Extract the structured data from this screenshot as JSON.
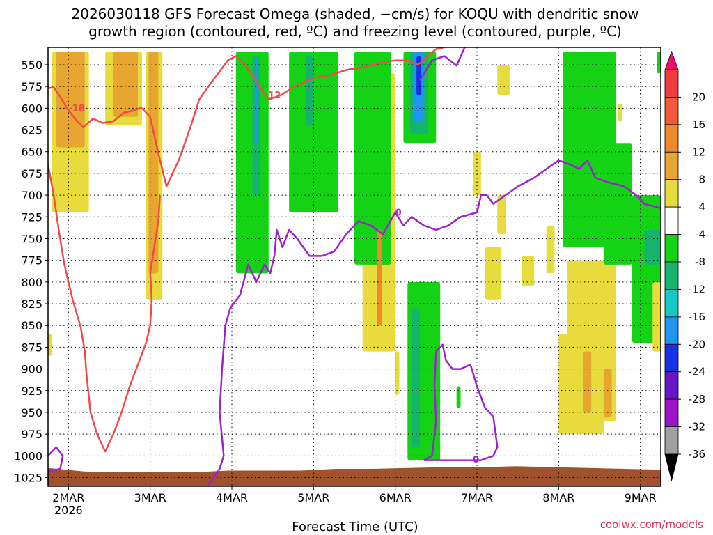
{
  "chart_data": {
    "type": "heatmap",
    "title_line1": "2026030118 GFS Forecast Omega (shaded, −cm/s) for KOQU with dendritic snow",
    "title_line2": "growth region (contoured, red, ºC) and freezing level (contoured, purple, ºC)",
    "xlabel": "Forecast Time (UTC)",
    "ylabel": "",
    "credit": "coolwx.com/models",
    "x_ticks": [
      {
        "label": "2MAR",
        "sublabel": "2026",
        "t": 0
      },
      {
        "label": "3MAR",
        "t": 1
      },
      {
        "label": "4MAR",
        "t": 2
      },
      {
        "label": "5MAR",
        "t": 3
      },
      {
        "label": "6MAR",
        "t": 4
      },
      {
        "label": "7MAR",
        "t": 5
      },
      {
        "label": "8MAR",
        "t": 6
      },
      {
        "label": "9MAR",
        "t": 7
      }
    ],
    "xlim": [
      -0.25,
      7.25
    ],
    "y_ticks": [
      550,
      575,
      600,
      625,
      650,
      675,
      700,
      725,
      750,
      775,
      800,
      825,
      850,
      875,
      900,
      925,
      950,
      975,
      1000,
      1025
    ],
    "ylim": [
      1035,
      530
    ],
    "grid": true,
    "colorbar": {
      "labels": [
        "20",
        "16",
        "12",
        "8",
        "4",
        "-4",
        "-8",
        "-12",
        "-16",
        "-20",
        "-24",
        "-28",
        "-32",
        "-36"
      ],
      "top_arrow": "#e8106e",
      "bottom_arrow": "#000000",
      "levels": [
        {
          "lo": 20,
          "hi": 24,
          "color": "#f03c3c"
        },
        {
          "lo": 16,
          "hi": 20,
          "color": "#f25a3a"
        },
        {
          "lo": 12,
          "hi": 16,
          "color": "#ee8a2a"
        },
        {
          "lo": 8,
          "hi": 12,
          "color": "#e6a630"
        },
        {
          "lo": 4,
          "hi": 8,
          "color": "#e8dc3c"
        },
        {
          "lo": -4,
          "hi": 4,
          "color": "#ffffff"
        },
        {
          "lo": -8,
          "hi": -4,
          "color": "#14d214"
        },
        {
          "lo": -12,
          "hi": -8,
          "color": "#14b46e"
        },
        {
          "lo": -16,
          "hi": -12,
          "color": "#14c8c8"
        },
        {
          "lo": -20,
          "hi": -16,
          "color": "#1e96f0"
        },
        {
          "lo": -24,
          "hi": -20,
          "color": "#1432e6"
        },
        {
          "lo": -28,
          "hi": -24,
          "color": "#6a14c8"
        },
        {
          "lo": -32,
          "hi": -28,
          "color": "#a014c8"
        },
        {
          "lo": -36,
          "hi": -32,
          "color": "#a0a0a0"
        }
      ]
    },
    "terrain": {
      "color": "#a0522d",
      "surface_hpa": [
        1014,
        1018,
        1019,
        1019,
        1019,
        1017,
        1017,
        1017,
        1015,
        1015,
        1014,
        1013,
        1013,
        1012,
        1013,
        1014,
        1015,
        1016
      ]
    },
    "shading_regions": [
      {
        "value": 6,
        "t0": -0.2,
        "t1": 0.25,
        "p_top": 535,
        "p_bot": 720
      },
      {
        "value": 10,
        "t0": -0.15,
        "t1": 0.2,
        "p_top": 535,
        "p_bot": 645
      },
      {
        "value": 6,
        "t0": 0.45,
        "t1": 0.9,
        "p_top": 535,
        "p_bot": 620
      },
      {
        "value": 10,
        "t0": 0.55,
        "t1": 0.85,
        "p_top": 535,
        "p_bot": 610
      },
      {
        "value": 6,
        "t0": 0.95,
        "t1": 1.15,
        "p_top": 535,
        "p_bot": 820
      },
      {
        "value": 10,
        "t0": 0.98,
        "t1": 1.1,
        "p_top": 535,
        "p_bot": 790
      },
      {
        "value": 6,
        "t0": -0.25,
        "t1": -0.2,
        "p_top": 860,
        "p_bot": 885
      },
      {
        "value": -6,
        "t0": 2.05,
        "t1": 2.45,
        "p_top": 535,
        "p_bot": 790
      },
      {
        "value": -10,
        "t0": 2.25,
        "t1": 2.35,
        "p_top": 540,
        "p_bot": 700
      },
      {
        "value": -18,
        "t0": 2.28,
        "t1": 2.32,
        "p_top": 545,
        "p_bot": 640
      },
      {
        "value": -6,
        "t0": 2.7,
        "t1": 3.3,
        "p_top": 535,
        "p_bot": 720
      },
      {
        "value": -10,
        "t0": 2.9,
        "t1": 3.0,
        "p_top": 540,
        "p_bot": 620
      },
      {
        "value": 6,
        "t0": 3.6,
        "t1": 4.0,
        "p_top": 560,
        "p_bot": 880
      },
      {
        "value": -6,
        "t0": 3.5,
        "t1": 3.95,
        "p_top": 535,
        "p_bot": 780
      },
      {
        "value": 14,
        "t0": 3.78,
        "t1": 3.84,
        "p_top": 740,
        "p_bot": 850
      },
      {
        "value": -6,
        "t0": 4.1,
        "t1": 4.5,
        "p_top": 535,
        "p_bot": 640
      },
      {
        "value": -10,
        "t0": 4.18,
        "t1": 4.4,
        "p_top": 535,
        "p_bot": 630
      },
      {
        "value": -18,
        "t0": 4.22,
        "t1": 4.34,
        "p_top": 535,
        "p_bot": 615
      },
      {
        "value": -22,
        "t0": 4.26,
        "t1": 4.32,
        "p_top": 540,
        "p_bot": 585
      },
      {
        "value": -6,
        "t0": 4.15,
        "t1": 4.55,
        "p_top": 800,
        "p_bot": 1005
      },
      {
        "value": -10,
        "t0": 4.2,
        "t1": 4.3,
        "p_top": 830,
        "p_bot": 990
      },
      {
        "value": -6,
        "t0": 4.75,
        "t1": 4.8,
        "p_top": 920,
        "p_bot": 945
      },
      {
        "value": 6,
        "t0": 4.0,
        "t1": 4.05,
        "p_top": 880,
        "p_bot": 930
      },
      {
        "value": 6,
        "t0": 4.95,
        "t1": 5.05,
        "p_top": 650,
        "p_bot": 700
      },
      {
        "value": 6,
        "t0": 5.25,
        "t1": 5.35,
        "p_top": 700,
        "p_bot": 745
      },
      {
        "value": 6,
        "t0": 5.85,
        "t1": 5.95,
        "p_top": 735,
        "p_bot": 790
      },
      {
        "value": 6,
        "t0": 5.55,
        "t1": 5.7,
        "p_top": 770,
        "p_bot": 805
      },
      {
        "value": 6,
        "t0": 5.1,
        "t1": 5.3,
        "p_top": 760,
        "p_bot": 820
      },
      {
        "value": 6,
        "t0": 5.25,
        "t1": 5.4,
        "p_top": 550,
        "p_bot": 585
      },
      {
        "value": 6,
        "t0": 6.1,
        "t1": 6.7,
        "p_top": 775,
        "p_bot": 960
      },
      {
        "value": 6,
        "t0": 6.0,
        "t1": 6.55,
        "p_top": 860,
        "p_bot": 975
      },
      {
        "value": 10,
        "t0": 6.3,
        "t1": 6.4,
        "p_top": 880,
        "p_bot": 950
      },
      {
        "value": 10,
        "t0": 6.55,
        "t1": 6.65,
        "p_top": 900,
        "p_bot": 955
      },
      {
        "value": -6,
        "t0": 6.05,
        "t1": 6.7,
        "p_top": 535,
        "p_bot": 760
      },
      {
        "value": -6,
        "t0": 6.55,
        "t1": 6.9,
        "p_top": 640,
        "p_bot": 780
      },
      {
        "value": -6,
        "t0": 6.9,
        "t1": 7.25,
        "p_top": 700,
        "p_bot": 870
      },
      {
        "value": -10,
        "t0": 7.05,
        "t1": 7.25,
        "p_top": 740,
        "p_bot": 780
      },
      {
        "value": 6,
        "t0": 6.72,
        "t1": 6.78,
        "p_top": 595,
        "p_bot": 615
      },
      {
        "value": -6,
        "t0": 7.2,
        "t1": 7.25,
        "p_top": 535,
        "p_bot": 560
      },
      {
        "value": 6,
        "t0": 7.15,
        "t1": 7.25,
        "p_top": 800,
        "p_bot": 880
      }
    ],
    "contours": [
      {
        "name": "dgz-minus-18",
        "color": "#f24a4a",
        "width": 2.5,
        "label": "-18",
        "label_at": [
          0.0,
          602
        ],
        "points": [
          [
            -0.25,
            577
          ],
          [
            -0.18,
            576
          ],
          [
            -0.1,
            587
          ],
          [
            -0.02,
            600
          ],
          [
            0.08,
            612
          ],
          [
            0.18,
            622
          ],
          [
            0.3,
            612
          ],
          [
            0.42,
            617
          ],
          [
            0.55,
            615
          ],
          [
            0.68,
            605
          ],
          [
            0.78,
            603
          ],
          [
            0.9,
            599
          ]
        ]
      },
      {
        "name": "dgz-minus-12-upper",
        "color": "#f24a4a",
        "width": 2.5,
        "label": "-12",
        "label_at": [
          2.4,
          587
        ],
        "points": [
          [
            0.9,
            600
          ],
          [
            1.0,
            610
          ],
          [
            1.1,
            652
          ],
          [
            1.2,
            690
          ],
          [
            1.35,
            660
          ],
          [
            1.5,
            620
          ],
          [
            1.6,
            590
          ],
          [
            1.75,
            570
          ],
          [
            1.85,
            558
          ],
          [
            1.95,
            545
          ],
          [
            2.05,
            540
          ],
          [
            2.15,
            548
          ],
          [
            2.25,
            562
          ],
          [
            2.35,
            577
          ],
          [
            2.45,
            590
          ],
          [
            2.6,
            585
          ],
          [
            2.75,
            576
          ],
          [
            3.0,
            565
          ],
          [
            3.2,
            562
          ],
          [
            3.4,
            556
          ],
          [
            3.6,
            553
          ],
          [
            3.8,
            548
          ],
          [
            4.0,
            545
          ],
          [
            4.15,
            545
          ],
          [
            4.28,
            550
          ],
          [
            4.4,
            540
          ],
          [
            4.5,
            532
          ]
        ]
      },
      {
        "name": "dgz-minus-12-top",
        "color": "#f24a4a",
        "width": 2.5,
        "points": [
          [
            4.5,
            532
          ],
          [
            4.6,
            530
          ]
        ]
      },
      {
        "name": "dgz-lower",
        "color": "#f24a4a",
        "width": 2.5,
        "points": [
          [
            -0.25,
            665
          ],
          [
            -0.18,
            700
          ],
          [
            -0.12,
            740
          ],
          [
            -0.05,
            780
          ],
          [
            0.05,
            820
          ],
          [
            0.15,
            852
          ],
          [
            0.2,
            880
          ],
          [
            0.22,
            905
          ],
          [
            0.27,
            950
          ],
          [
            0.35,
            975
          ],
          [
            0.45,
            995
          ],
          [
            0.55,
            975
          ],
          [
            0.65,
            950
          ],
          [
            0.75,
            920
          ],
          [
            0.85,
            895
          ],
          [
            0.95,
            870
          ],
          [
            1.0,
            850
          ],
          [
            1.02,
            820
          ],
          [
            1.0,
            790
          ],
          [
            1.05,
            760
          ],
          [
            1.1,
            730
          ],
          [
            1.12,
            700
          ]
        ]
      },
      {
        "name": "freezing-level-main",
        "color": "#a020d0",
        "width": 2.5,
        "label": "0",
        "label_at": [
          4.0,
          722
        ],
        "points": [
          [
            1.7,
            1035
          ],
          [
            1.85,
            1015
          ],
          [
            1.9,
            1000
          ],
          [
            1.85,
            950
          ],
          [
            1.88,
            900
          ],
          [
            1.92,
            850
          ],
          [
            1.98,
            830
          ],
          [
            2.1,
            815
          ],
          [
            2.2,
            780
          ],
          [
            2.3,
            800
          ],
          [
            2.4,
            780
          ],
          [
            2.47,
            790
          ],
          [
            2.52,
            770
          ],
          [
            2.55,
            740
          ],
          [
            2.62,
            760
          ],
          [
            2.7,
            740
          ],
          [
            2.8,
            750
          ],
          [
            2.95,
            770
          ],
          [
            3.1,
            770
          ],
          [
            3.25,
            765
          ],
          [
            3.4,
            745
          ],
          [
            3.55,
            730
          ],
          [
            3.7,
            735
          ],
          [
            3.85,
            745
          ],
          [
            4.0,
            720
          ],
          [
            4.1,
            735
          ],
          [
            4.2,
            725
          ],
          [
            4.35,
            735
          ],
          [
            4.5,
            740
          ],
          [
            4.65,
            735
          ],
          [
            4.8,
            725
          ],
          [
            5.0,
            720
          ],
          [
            5.05,
            700
          ],
          [
            5.12,
            700
          ],
          [
            5.2,
            710
          ],
          [
            5.35,
            700
          ],
          [
            5.5,
            690
          ],
          [
            5.7,
            680
          ],
          [
            5.85,
            670
          ],
          [
            6.0,
            660
          ],
          [
            6.15,
            665
          ],
          [
            6.25,
            670
          ],
          [
            6.35,
            660
          ],
          [
            6.45,
            680
          ],
          [
            6.6,
            685
          ],
          [
            6.8,
            690
          ],
          [
            6.95,
            700
          ],
          [
            7.05,
            710
          ],
          [
            7.25,
            715
          ]
        ]
      },
      {
        "name": "freezing-level-upper",
        "color": "#a020d0",
        "width": 2.5,
        "points": [
          [
            4.3,
            568
          ],
          [
            4.45,
            545
          ],
          [
            4.6,
            540
          ],
          [
            4.75,
            551
          ],
          [
            4.85,
            530
          ]
        ]
      },
      {
        "name": "freezing-level-low",
        "color": "#a020d0",
        "width": 2.5,
        "label": "0",
        "label_at": [
          4.95,
          1006
        ],
        "points": [
          [
            4.35,
            1005
          ],
          [
            4.45,
            1000
          ],
          [
            4.5,
            960
          ],
          [
            4.48,
            920
          ],
          [
            4.5,
            880
          ],
          [
            4.58,
            872
          ],
          [
            4.62,
            890
          ],
          [
            4.7,
            900
          ],
          [
            4.8,
            900
          ],
          [
            4.92,
            895
          ],
          [
            5.0,
            920
          ],
          [
            5.1,
            945
          ],
          [
            5.2,
            955
          ],
          [
            5.25,
            990
          ],
          [
            5.2,
            1000
          ],
          [
            5.05,
            1005
          ],
          [
            4.85,
            1005
          ],
          [
            4.65,
            1005
          ],
          [
            4.35,
            1005
          ]
        ]
      },
      {
        "name": "freezing-level-left",
        "color": "#a020d0",
        "width": 2.5,
        "points": [
          [
            -0.25,
            1000
          ],
          [
            -0.15,
            990
          ],
          [
            -0.07,
            1000
          ],
          [
            -0.1,
            1015
          ],
          [
            -0.25,
            1018
          ]
        ]
      }
    ]
  }
}
